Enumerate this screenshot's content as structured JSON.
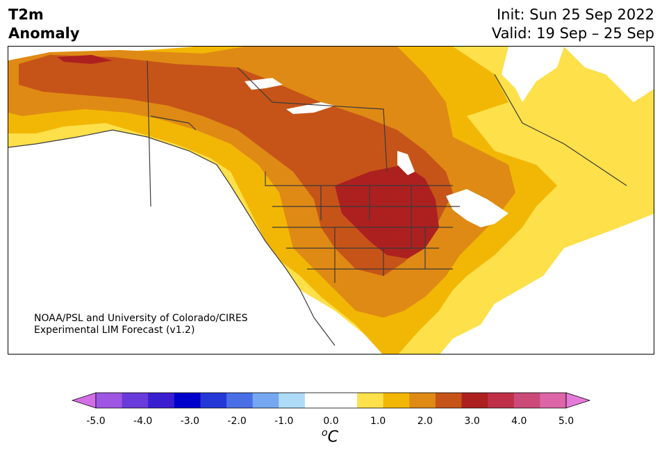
{
  "header": {
    "variable": "T2m",
    "variable2": "Anomaly",
    "init": "Init: Sun 25 Sep 2022",
    "valid": "Valid: 19 Sep – 25 Sep"
  },
  "credit": {
    "line1": "NOAA/PSL and University of Colorado/CIRES",
    "line2": "Experimental LIM Forecast (v1.2)"
  },
  "colorbar": {
    "unit_base": "C",
    "unit_sup": "o",
    "ticks": [
      "-5.0",
      "-4.0",
      "-3.0",
      "-2.0",
      "-1.0",
      "0.0",
      "1.0",
      "2.0",
      "3.0",
      "4.0",
      "5.0"
    ],
    "colors": [
      "#d36fe6",
      "#9e56e3",
      "#6a3bdb",
      "#3a1fd0",
      "#0000cc",
      "#2438d8",
      "#4a6ee6",
      "#75a8f0",
      "#aedcf8",
      "#ffffff",
      "#ffffff",
      "#fde04a",
      "#f2b705",
      "#df8a14",
      "#c65418",
      "#ad2020",
      "#bf3048",
      "#cc4a78",
      "#dc66a8",
      "#e67ad8"
    ]
  },
  "map": {
    "levels": {
      "c1": "#fde04a",
      "c15": "#f2b705",
      "c2": "#df8a14",
      "c25": "#c65418",
      "c3": "#ad2020"
    }
  }
}
